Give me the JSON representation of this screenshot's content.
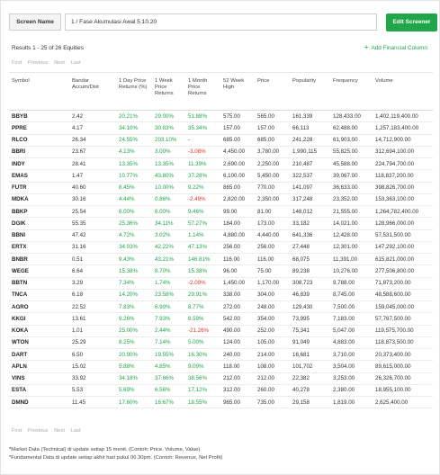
{
  "screen": {
    "label": "Screen Name",
    "value": "1 / Fase Akumulasi Awal 5.10.20",
    "edit_button": "Edit Screener"
  },
  "results_text": "Results 1 - 25 of 26 Equities",
  "add_financial": "Add Financial Column",
  "pager": {
    "first": "First",
    "previous": "Previous",
    "next": "Next",
    "last": "Last"
  },
  "columns": [
    "Symbol",
    "Bandar Accum/Dist",
    "1 Day Price Returns (%)",
    "1 Week Price Returns",
    "1 Month Price Returns",
    "52 Week High",
    "Price",
    "Popularity",
    "Frequency",
    "Volume"
  ],
  "rows": [
    [
      "BBYB",
      "2.42",
      "20.21%",
      "29.00%",
      "51.88%",
      "575.00",
      "565.00",
      "161,339",
      "128,433.00",
      "1,402,119,400.00"
    ],
    [
      "PPRE",
      "4.17",
      "34.10%",
      "30.83%",
      "35.34%",
      "157.00",
      "157.00",
      "66,113",
      "62,488.00",
      "1,257,183,400.00"
    ],
    [
      "RLCO",
      "26.34",
      "24.55%",
      "203.10%",
      "-",
      "685.00",
      "685.00",
      "241,228",
      "61,903.00",
      "14,712,900.00"
    ],
    [
      "BBRI",
      "23.67",
      "4.13%",
      "3.00%",
      "-3.08%",
      "4,450.00",
      "3,780.00",
      "1,990,115",
      "55,825.00",
      "312,694,100.00"
    ],
    [
      "INDY",
      "28.41",
      "13.35%",
      "13.35%",
      "11.39%",
      "2,690.00",
      "2,250.00",
      "210,487",
      "45,588.00",
      "224,794,700.00"
    ],
    [
      "EMAS",
      "1.47",
      "10.77%",
      "43.80%",
      "37.28%",
      "6,100.00",
      "5,450.00",
      "322,537",
      "39,067.00",
      "118,837,200.00"
    ],
    [
      "FUTR",
      "40.60",
      "8.45%",
      "10.00%",
      "9.22%",
      "865.00",
      "770.00",
      "141,097",
      "36,633.00",
      "398,826,700.00"
    ],
    [
      "MDKA",
      "30.16",
      "4.44%",
      "0.86%",
      "-2.49%",
      "2,820.00",
      "2,350.00",
      "317,248",
      "23,352.00",
      "153,363,100.00"
    ],
    [
      "BBKP",
      "25.54",
      "8.00%",
      "8.00%",
      "9.46%",
      "99.00",
      "81.00",
      "148,012",
      "21,555.00",
      "1,264,782,400.00"
    ],
    [
      "DGIK",
      "55.35",
      "25.36%",
      "34.11%",
      "57.27%",
      "184.00",
      "173.00",
      "33,182",
      "14,021.00",
      "128,966,000.00"
    ],
    [
      "BBNI",
      "47.42",
      "4.72%",
      "3.02%",
      "1.14%",
      "4,880.00",
      "4,440.00",
      "641,336",
      "12,428.00",
      "57,531,500.00"
    ],
    [
      "ERTX",
      "31.16",
      "34.03%",
      "42.22%",
      "47.13%",
      "256.00",
      "256.00",
      "27,448",
      "12,301.00",
      "147,292,100.00"
    ],
    [
      "BNBR",
      "0.51",
      "9.43%",
      "43.21%",
      "146.81%",
      "116.00",
      "116.00",
      "68,075",
      "11,391.00",
      "615,821,000.00"
    ],
    [
      "WEGE",
      "6.64",
      "15.38%",
      "8.70%",
      "15.38%",
      "96.00",
      "75.00",
      "89,238",
      "10,276.00",
      "277,506,800.00"
    ],
    [
      "BBTN",
      "3.29",
      "7.34%",
      "1.74%",
      "-2.09%",
      "1,450.00",
      "1,170.00",
      "308,723",
      "9,788.00",
      "71,873,200.00"
    ],
    [
      "TNCA",
      "6.18",
      "14.20%",
      "23.58%",
      "29.91%",
      "338.00",
      "304.00",
      "46,839",
      "8,745.00",
      "48,588,600.00"
    ],
    [
      "AGRO",
      "22.52",
      "7.83%",
      "6.90%",
      "8.77%",
      "272.00",
      "248.00",
      "129,430",
      "7,500.00",
      "159,045,000.00"
    ],
    [
      "KKGI",
      "13.61",
      "9.26%",
      "7.93%",
      "8.59%",
      "542.00",
      "354.00",
      "73,995",
      "7,183.00",
      "57,767,500.00"
    ],
    [
      "KOKA",
      "1.01",
      "25.00%",
      "2.44%",
      "-21.26%",
      "490.00",
      "252.00",
      "75,341",
      "5,047.00",
      "119,575,700.00"
    ],
    [
      "WTON",
      "25.29",
      "8.25%",
      "7.14%",
      "5.00%",
      "124.00",
      "105.00",
      "91,049",
      "4,883.00",
      "118,873,500.00"
    ],
    [
      "DART",
      "6.50",
      "20.90%",
      "19.55%",
      "16.30%",
      "240.00",
      "214.00",
      "16,681",
      "3,710.00",
      "20,373,400.00"
    ],
    [
      "APLN",
      "15.02",
      "5.88%",
      "4.85%",
      "9.09%",
      "118.00",
      "108.00",
      "101,702",
      "3,504.00",
      "89,615,000.00"
    ],
    [
      "VINS",
      "33.92",
      "34.18%",
      "37.66%",
      "38.56%",
      "212.00",
      "212.00",
      "22,382",
      "3,253.00",
      "26,326,700.00"
    ],
    [
      "ESTA",
      "5.53",
      "5.69%",
      "6.56%",
      "17.12%",
      "312.00",
      "260.00",
      "40,278",
      "2,380.00",
      "18,955,100.00"
    ],
    [
      "DMND",
      "11.45",
      "17.60%",
      "16.67%",
      "18.55%",
      "965.00",
      "735.00",
      "29,158",
      "1,819.00",
      "2,625,400.00"
    ]
  ],
  "footnotes": [
    "*Market Data (Technical) di update setiap 15 menit. (Contoh: Price, Volume, Value)",
    "*Fundamental Data di update setiap akhir hari pukul 06.30pm. (Contoh: Revenue, Net Profit)"
  ],
  "colors": {
    "accent": "#1fa64a",
    "negative": "#e0342a"
  }
}
